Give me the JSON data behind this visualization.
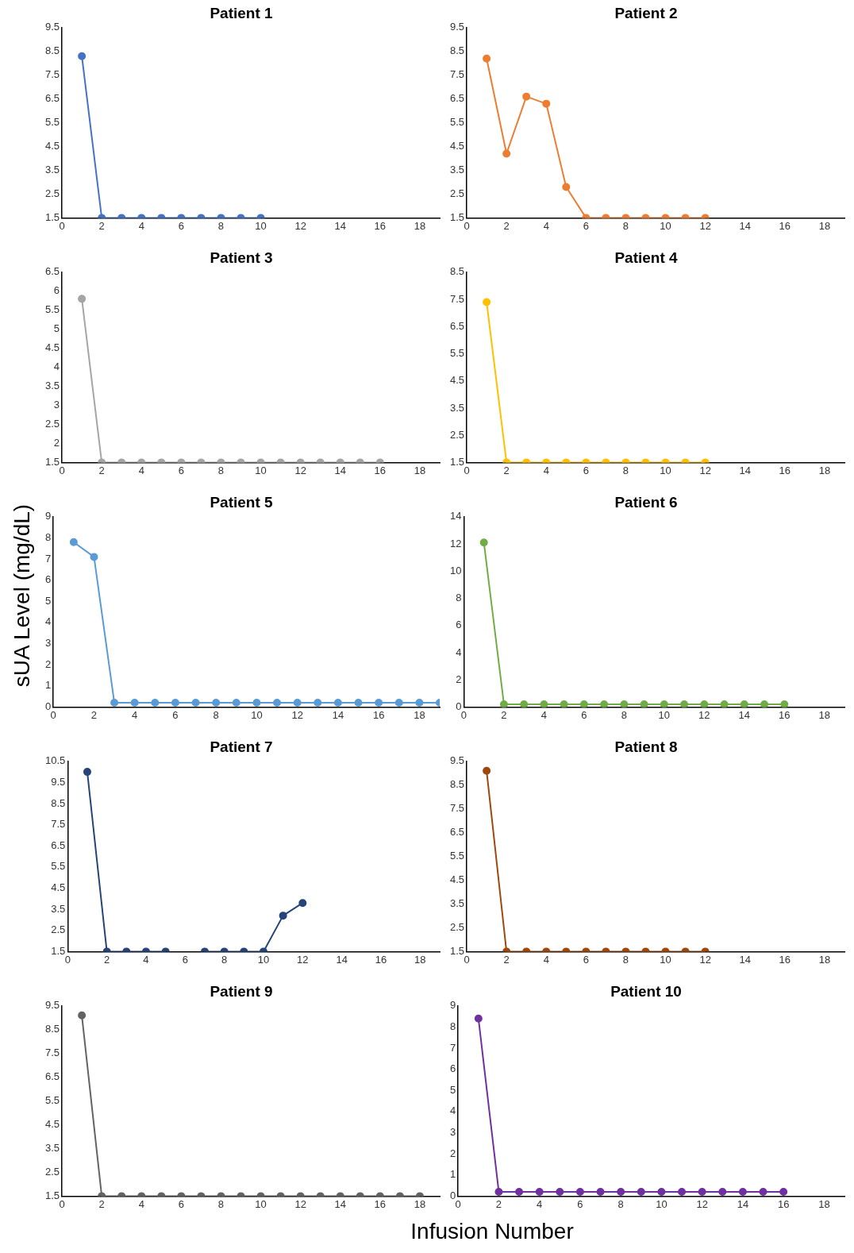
{
  "chart_data": [
    {
      "type": "line",
      "title": "Patient 1",
      "x": [
        1,
        2,
        3,
        4,
        5,
        6,
        7,
        8,
        9,
        10
      ],
      "xlim": [
        0,
        19
      ],
      "xticks": [
        0,
        2,
        4,
        6,
        8,
        10,
        12,
        14,
        16,
        18
      ],
      "ylim": [
        1.5,
        9.5
      ],
      "yticks": [
        1.5,
        2.5,
        3.5,
        4.5,
        5.5,
        6.5,
        7.5,
        8.5,
        9.5
      ],
      "marker": "circle",
      "grid": false,
      "legend": false,
      "series": [
        {
          "color": "#4472c4",
          "values": [
            8.3,
            1.5,
            1.5,
            1.5,
            1.5,
            1.5,
            1.5,
            1.5,
            1.5,
            1.5
          ]
        }
      ]
    },
    {
      "type": "line",
      "title": "Patient 2",
      "x": [
        1,
        2,
        3,
        4,
        5,
        6,
        7,
        8,
        9,
        10,
        11,
        12
      ],
      "xlim": [
        0,
        19
      ],
      "xticks": [
        0,
        2,
        4,
        6,
        8,
        10,
        12,
        14,
        16,
        18
      ],
      "ylim": [
        1.5,
        9.5
      ],
      "yticks": [
        1.5,
        2.5,
        3.5,
        4.5,
        5.5,
        6.5,
        7.5,
        8.5,
        9.5
      ],
      "marker": "circle",
      "grid": false,
      "legend": false,
      "series": [
        {
          "color": "#ed7d31",
          "values": [
            8.2,
            4.2,
            6.6,
            6.3,
            2.8,
            1.5,
            1.5,
            1.5,
            1.5,
            1.5,
            1.5,
            1.5
          ]
        }
      ]
    },
    {
      "type": "line",
      "title": "Patient 3",
      "x": [
        1,
        2,
        3,
        4,
        5,
        6,
        7,
        8,
        9,
        10,
        11,
        12,
        13,
        14,
        15,
        16
      ],
      "xlim": [
        0,
        19
      ],
      "xticks": [
        0,
        2,
        4,
        6,
        8,
        10,
        12,
        14,
        16,
        18
      ],
      "ylim": [
        1.5,
        6.5
      ],
      "yticks": [
        1.5,
        2,
        2.5,
        3,
        3.5,
        4,
        4.5,
        5,
        5.5,
        6,
        6.5
      ],
      "marker": "circle",
      "grid": false,
      "legend": false,
      "series": [
        {
          "color": "#a5a5a5",
          "values": [
            5.8,
            1.5,
            1.5,
            1.5,
            1.5,
            1.5,
            1.5,
            1.5,
            1.5,
            1.5,
            1.5,
            1.5,
            1.5,
            1.5,
            1.5,
            1.5
          ]
        }
      ]
    },
    {
      "type": "line",
      "title": "Patient 4",
      "x": [
        1,
        2,
        3,
        4,
        5,
        6,
        7,
        8,
        9,
        10,
        11,
        12
      ],
      "xlim": [
        0,
        19
      ],
      "xticks": [
        0,
        2,
        4,
        6,
        8,
        10,
        12,
        14,
        16,
        18
      ],
      "ylim": [
        1.5,
        8.5
      ],
      "yticks": [
        1.5,
        2.5,
        3.5,
        4.5,
        5.5,
        6.5,
        7.5,
        8.5
      ],
      "marker": "circle",
      "grid": false,
      "legend": false,
      "series": [
        {
          "color": "#ffc000",
          "values": [
            7.4,
            1.5,
            1.5,
            1.5,
            1.5,
            1.5,
            1.5,
            1.5,
            1.5,
            1.5,
            1.5,
            1.5
          ]
        }
      ]
    },
    {
      "type": "line",
      "title": "Patient 5",
      "ylabel": "sUA Level (mg/dL)",
      "x": [
        1,
        2,
        3,
        4,
        5,
        6,
        7,
        8,
        9,
        10,
        11,
        12,
        13,
        14,
        15,
        16,
        17,
        18,
        19
      ],
      "xlim": [
        0,
        19
      ],
      "xticks": [
        0,
        2,
        4,
        6,
        8,
        10,
        12,
        14,
        16,
        18
      ],
      "ylim": [
        0,
        9
      ],
      "yticks": [
        0,
        1,
        2,
        3,
        4,
        5,
        6,
        7,
        8,
        9
      ],
      "marker": "circle",
      "grid": false,
      "legend": false,
      "series": [
        {
          "color": "#5b9bd5",
          "values": [
            7.8,
            7.1,
            0.2,
            0.2,
            0.2,
            0.2,
            0.2,
            0.2,
            0.2,
            0.2,
            0.2,
            0.2,
            0.2,
            0.2,
            0.2,
            0.2,
            0.2,
            0.2,
            0.2
          ]
        }
      ]
    },
    {
      "type": "line",
      "title": "Patient 6",
      "x": [
        1,
        2,
        3,
        4,
        5,
        6,
        7,
        8,
        9,
        10,
        11,
        12,
        13,
        14,
        15,
        16
      ],
      "xlim": [
        0,
        19
      ],
      "xticks": [
        0,
        2,
        4,
        6,
        8,
        10,
        12,
        14,
        16,
        18
      ],
      "ylim": [
        0,
        14
      ],
      "yticks": [
        0,
        2,
        4,
        6,
        8,
        10,
        12,
        14
      ],
      "marker": "circle",
      "grid": false,
      "legend": false,
      "series": [
        {
          "color": "#70ad47",
          "values": [
            12.1,
            0.2,
            0.2,
            0.2,
            0.2,
            0.2,
            0.2,
            0.2,
            0.2,
            0.2,
            0.2,
            0.2,
            0.2,
            0.2,
            0.2,
            0.2
          ]
        }
      ]
    },
    {
      "type": "line",
      "title": "Patient 7",
      "x": [
        1,
        2,
        3,
        4,
        5,
        6,
        7,
        8,
        9,
        10,
        11,
        12
      ],
      "xlim": [
        0,
        19
      ],
      "xticks": [
        0,
        2,
        4,
        6,
        8,
        10,
        12,
        14,
        16,
        18
      ],
      "ylim": [
        1.5,
        10.5
      ],
      "yticks": [
        1.5,
        2.5,
        3.5,
        4.5,
        5.5,
        6.5,
        7.5,
        8.5,
        9.5,
        10.5
      ],
      "marker": "circle",
      "grid": false,
      "legend": false,
      "series": [
        {
          "color": "#264478",
          "values": [
            10,
            1.5,
            1.5,
            1.5,
            1.5,
            null,
            1.5,
            1.5,
            1.5,
            1.5,
            3.2,
            3.8
          ]
        }
      ]
    },
    {
      "type": "line",
      "title": "Patient 8",
      "x": [
        1,
        2,
        3,
        4,
        5,
        6,
        7,
        8,
        9,
        10,
        11,
        12
      ],
      "xlim": [
        0,
        19
      ],
      "xticks": [
        0,
        2,
        4,
        6,
        8,
        10,
        12,
        14,
        16,
        18
      ],
      "ylim": [
        1.5,
        9.5
      ],
      "yticks": [
        1.5,
        2.5,
        3.5,
        4.5,
        5.5,
        6.5,
        7.5,
        8.5,
        9.5
      ],
      "marker": "circle",
      "grid": false,
      "legend": false,
      "series": [
        {
          "color": "#9e480e",
          "values": [
            9.1,
            1.5,
            1.5,
            1.5,
            1.5,
            1.5,
            1.5,
            1.5,
            1.5,
            1.5,
            1.5,
            1.5
          ]
        }
      ]
    },
    {
      "type": "line",
      "title": "Patient 9",
      "x": [
        1,
        2,
        3,
        4,
        5,
        6,
        7,
        8,
        9,
        10,
        11,
        12,
        13,
        14,
        15,
        16,
        17,
        18
      ],
      "xlim": [
        0,
        19
      ],
      "xticks": [
        0,
        2,
        4,
        6,
        8,
        10,
        12,
        14,
        16,
        18
      ],
      "ylim": [
        1.5,
        9.5
      ],
      "yticks": [
        1.5,
        2.5,
        3.5,
        4.5,
        5.5,
        6.5,
        7.5,
        8.5,
        9.5
      ],
      "marker": "circle",
      "grid": false,
      "legend": false,
      "series": [
        {
          "color": "#636363",
          "values": [
            9.1,
            1.5,
            1.5,
            1.5,
            1.5,
            1.5,
            1.5,
            1.5,
            1.5,
            1.5,
            1.5,
            1.5,
            1.5,
            1.5,
            1.5,
            1.5,
            1.5,
            1.5
          ]
        }
      ]
    },
    {
      "type": "line",
      "title": "Patient 10",
      "xlabel": "Infusion Number",
      "x": [
        1,
        2,
        3,
        4,
        5,
        6,
        7,
        8,
        9,
        10,
        11,
        12,
        13,
        14,
        15,
        16
      ],
      "xlim": [
        0,
        19
      ],
      "xticks": [
        0,
        2,
        4,
        6,
        8,
        10,
        12,
        14,
        16,
        18
      ],
      "ylim": [
        0,
        9
      ],
      "yticks": [
        0,
        1,
        2,
        3,
        4,
        5,
        6,
        7,
        8,
        9
      ],
      "marker": "circle",
      "grid": false,
      "legend": false,
      "series": [
        {
          "color": "#7030a0",
          "values": [
            8.4,
            0.2,
            0.2,
            0.2,
            0.2,
            0.2,
            0.2,
            0.2,
            0.2,
            0.2,
            0.2,
            0.2,
            0.2,
            0.2,
            0.2,
            0.2
          ]
        }
      ]
    }
  ]
}
